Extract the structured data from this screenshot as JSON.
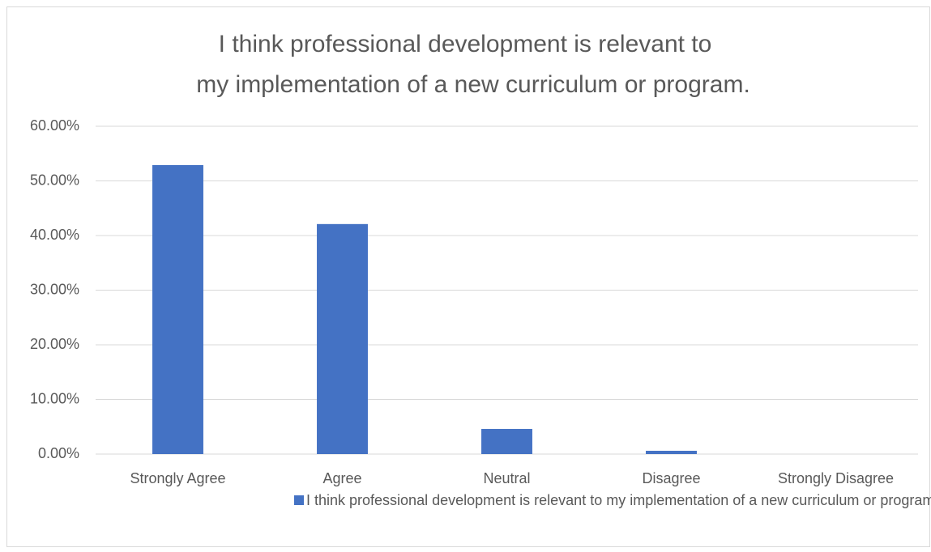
{
  "chart_data": {
    "type": "bar",
    "title": [
      "I think professional development is relevant to",
      "my implementation of a new curriculum or program."
    ],
    "categories": [
      "Strongly Agree",
      "Agree",
      "Neutral",
      "Disagree",
      "Strongly Disagree"
    ],
    "series": [
      {
        "name": "I think professional development is relevant to my implementation of a new curriculum or program.",
        "color": "#4472c4",
        "values": [
          52.9,
          42.1,
          4.6,
          0.6,
          0
        ]
      }
    ],
    "ylim": [
      0,
      60
    ],
    "yticks": [
      {
        "value": 0,
        "label": "0.00%"
      },
      {
        "value": 10,
        "label": "10.00%"
      },
      {
        "value": 20,
        "label": "20.00%"
      },
      {
        "value": 30,
        "label": "30.00%"
      },
      {
        "value": 40,
        "label": "40.00%"
      },
      {
        "value": 50,
        "label": "50.00%"
      },
      {
        "value": 60,
        "label": "60.00%"
      }
    ],
    "grid": true,
    "legend": "bottom"
  }
}
